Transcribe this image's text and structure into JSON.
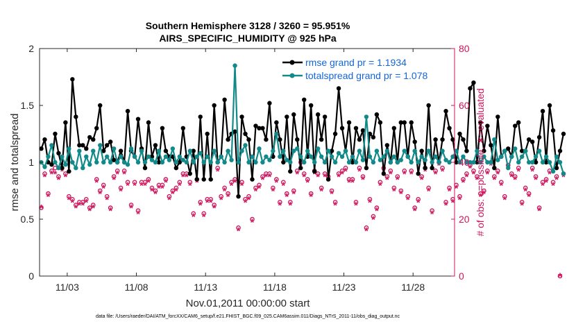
{
  "chart_data": {
    "type": "line",
    "title_line1": "Southern Hemisphere 3128 / 3260 = 95.951%",
    "title_line2": "AIRS_SPECIFIC_HUMIDITY @ 925 hPa",
    "xlabel": "Nov.01,2011 00:00:00 start",
    "ylabel_left": "rmse and totalspread",
    "ylabel_right": "# of obs: o=possible; ∗=evaluated",
    "footnote": "data file: /Users/raeder/DAI/ATM_forcXX/CAM6_setup/f.e21.FHIST_BGC.f09_025.CAM6assim.011/Diags_NTrS_2011-11/obs_diag_output.nc",
    "xlim": [
      1.0,
      31.0
    ],
    "ylim_left": [
      0,
      2
    ],
    "ylim_right": [
      0,
      80
    ],
    "x_ticks": [
      {
        "value": 3,
        "label": "11/03"
      },
      {
        "value": 8,
        "label": "11/08"
      },
      {
        "value": 13,
        "label": "11/13"
      },
      {
        "value": 18,
        "label": "11/18"
      },
      {
        "value": 23,
        "label": "11/23"
      },
      {
        "value": 28,
        "label": "11/28"
      }
    ],
    "y_ticks_left": [
      {
        "value": 0,
        "label": "0"
      },
      {
        "value": 0.5,
        "label": "0.5"
      },
      {
        "value": 1,
        "label": "1"
      },
      {
        "value": 1.5,
        "label": "1.5"
      },
      {
        "value": 2,
        "label": "2"
      }
    ],
    "y_ticks_right": [
      {
        "value": 0,
        "label": "0"
      },
      {
        "value": 20,
        "label": "20"
      },
      {
        "value": 40,
        "label": "40"
      },
      {
        "value": 60,
        "label": "60"
      },
      {
        "value": 80,
        "label": "80"
      }
    ],
    "x_start": 1.125,
    "x_step": 0.25,
    "series": [
      {
        "name": "rmse",
        "legend": "rmse grand pr = 1.1934",
        "color": "#000000",
        "values": [
          1.12,
          1.2,
          1.0,
          0.98,
          1.25,
          1.08,
          0.95,
          1.35,
          0.92,
          1.73,
          1.4,
          1.15,
          1.15,
          1.12,
          1.22,
          1.2,
          1.3,
          1.5,
          1.1,
          1.15,
          1.18,
          1.02,
          1.0,
          1.1,
          1.0,
          1.45,
          1.1,
          1.05,
          1.38,
          1.12,
          0.95,
          1.35,
          1.05,
          1.15,
          1.0,
          1.3,
          1.1,
          1.05,
          1.05,
          0.95,
          1.0,
          1.3,
          1.05,
          0.9,
          1.1,
          0.85,
          1.4,
          0.85,
          1.25,
          0.85,
          1.5,
          1.0,
          1.05,
          1.55,
          1.2,
          1.25,
          1.27,
          0.7,
          1.4,
          1.25,
          1.2,
          0.85,
          1.32,
          1.3,
          1.3,
          1.2,
          1.52,
          1.05,
          1.35,
          1.2,
          1.0,
          1.4,
          0.92,
          1.42,
          1.2,
          0.95,
          1.55,
          1.05,
          1.5,
          0.92,
          1.42,
          1.2,
          1.4,
          0.85,
          1.1,
          1.25,
          1.65,
          1.3,
          1.1,
          1.35,
          1.0,
          1.3,
          1.2,
          1.28,
          0.95,
          1.25,
          1.22,
          1.42,
          1.35,
          0.9,
          1.15,
          1.0,
          1.3,
          1.0,
          1.35,
          1.35,
          1.05,
          1.35,
          1.18,
          0.9,
          1.1,
          0.95,
          1.5,
          0.95,
          1.2,
          1.0,
          1.2,
          1.45,
          1.3,
          1.2,
          1.0,
          1.25,
          1.2,
          1.1,
          1.65,
          1.7,
          1.0,
          1.35,
          1.1,
          1.32,
          1.15,
          0.95,
          1.4,
          1.05,
          1.1,
          1.12,
          1.05,
          1.32,
          1.35,
          1.1,
          1.1,
          1.2,
          1.18,
          1.0,
          1.22,
          1.45,
          1.0,
          1.5,
          1.28,
          0.95,
          1.1,
          1.25
        ]
      },
      {
        "name": "totalspread",
        "legend": "totalspread grand pr = 1.078",
        "color": "#138a8a",
        "values": [
          1.0,
          0.96,
          1.05,
          1.15,
          1.0,
          0.95,
          1.05,
          0.98,
          1.12,
          1.0,
          0.95,
          1.1,
          0.95,
          1.05,
          0.98,
          1.1,
          1.0,
          1.15,
          1.0,
          1.05,
          1.0,
          1.12,
          1.0,
          1.05,
          1.0,
          0.98,
          1.12,
          1.05,
          1.0,
          1.1,
          1.0,
          1.05,
          1.02,
          1.0,
          1.1,
          1.0,
          1.05,
          1.02,
          1.12,
          1.0,
          1.05,
          1.02,
          1.0,
          1.1,
          1.0,
          1.05,
          1.08,
          1.0,
          1.05,
          1.0,
          1.1,
          1.0,
          1.05,
          1.0,
          1.1,
          1.02,
          1.85,
          1.0,
          1.1,
          1.15,
          1.0,
          1.05,
          1.0,
          1.12,
          1.0,
          1.05,
          1.02,
          1.1,
          1.25,
          1.05,
          1.1,
          1.02,
          1.0,
          1.1,
          1.12,
          1.05,
          1.0,
          1.1,
          1.05,
          1.0,
          1.12,
          1.05,
          1.0,
          1.1,
          1.05,
          1.0,
          1.08,
          1.05,
          1.1,
          1.0,
          1.05,
          1.0,
          1.1,
          1.02,
          1.4,
          1.05,
          1.0,
          1.1,
          1.02,
          1.05,
          1.1,
          1.0,
          1.05,
          1.0,
          1.02,
          1.1,
          1.05,
          1.0,
          1.1,
          1.0,
          1.05,
          1.02,
          1.1,
          1.0,
          1.05,
          1.0,
          1.1,
          1.02,
          1.0,
          1.05,
          1.1,
          1.0,
          1.05,
          1.0,
          1.0,
          1.0,
          1.1,
          1.0,
          1.05,
          1.0,
          1.0,
          1.2,
          1.02,
          1.05,
          1.1,
          0.95,
          1.05,
          1.12,
          1.0,
          1.05,
          1.1,
          1.0,
          1.0,
          1.05,
          1.1,
          1.0,
          1.05,
          1.0,
          0.92,
          1.05,
          1.0,
          0.9
        ]
      }
    ],
    "obs_series": [
      {
        "name": "possible",
        "marker": "o",
        "color": "#d0135b",
        "values": [
          24,
          36,
          29,
          37,
          38,
          35,
          38,
          36,
          28,
          27,
          25,
          26,
          26,
          27,
          24,
          25,
          34,
          30,
          32,
          28,
          24,
          35,
          37,
          31,
          37,
          33,
          25,
          33,
          23,
          33,
          33,
          34,
          31,
          30,
          32,
          32,
          34,
          28,
          30,
          31,
          33,
          36,
          36,
          33,
          22,
          34,
          26,
          22,
          27,
          27,
          25,
          38,
          28,
          31,
          29,
          33,
          34,
          17,
          33,
          27,
          28,
          20,
          31,
          32,
          35,
          36,
          36,
          31,
          34,
          26,
          33,
          29,
          26,
          30,
          37,
          40,
          36,
          34,
          29,
          37,
          36,
          31,
          36,
          35,
          30,
          26,
          36,
          37,
          38,
          34,
          34,
          26,
          38,
          35,
          17,
          27,
          21,
          24,
          33,
          38,
          35,
          37,
          31,
          35,
          30,
          37,
          28,
          37,
          24,
          27,
          35,
          38,
          31,
          23,
          37,
          40,
          38,
          26,
          31,
          27,
          32,
          28,
          34,
          36,
          39,
          37,
          35,
          29,
          30,
          37,
          40,
          35,
          37,
          33,
          28,
          39,
          36,
          35,
          38,
          26,
          31,
          29,
          38,
          35,
          24,
          33,
          34,
          37,
          33,
          35,
          0,
          36
        ]
      },
      {
        "name": "evaluated",
        "marker": "*",
        "color": "#d0135b",
        "values": [
          24,
          35,
          28,
          36,
          36,
          34,
          37,
          35,
          27,
          26,
          24,
          25,
          25,
          26,
          23,
          24,
          33,
          29,
          31,
          27,
          23,
          34,
          36,
          30,
          36,
          32,
          24,
          32,
          22,
          32,
          32,
          33,
          30,
          29,
          31,
          31,
          33,
          27,
          29,
          30,
          32,
          35,
          35,
          32,
          21,
          33,
          25,
          21,
          26,
          26,
          24,
          37,
          27,
          30,
          28,
          32,
          33,
          16,
          32,
          26,
          27,
          19,
          30,
          31,
          34,
          35,
          35,
          30,
          33,
          25,
          32,
          28,
          25,
          29,
          36,
          39,
          35,
          33,
          28,
          36,
          35,
          30,
          35,
          34,
          29,
          25,
          35,
          36,
          37,
          33,
          33,
          25,
          37,
          34,
          16,
          26,
          20,
          23,
          32,
          37,
          34,
          36,
          30,
          34,
          29,
          36,
          27,
          36,
          23,
          26,
          34,
          37,
          30,
          22,
          36,
          39,
          37,
          25,
          30,
          26,
          31,
          27,
          33,
          35,
          38,
          36,
          34,
          28,
          29,
          36,
          39,
          34,
          36,
          32,
          27,
          38,
          35,
          34,
          37,
          25,
          30,
          28,
          37,
          34,
          23,
          32,
          33,
          36,
          32,
          34,
          0,
          35
        ]
      }
    ]
  }
}
